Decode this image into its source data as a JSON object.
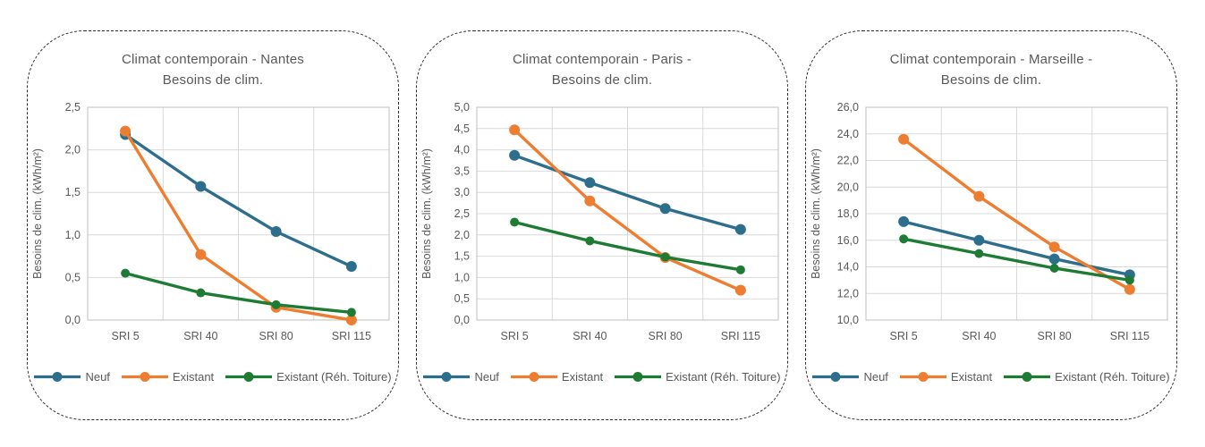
{
  "colors": {
    "grid": "#d9d9d9",
    "plot_border": "#bfbfbf",
    "axis_text": "#595959",
    "title_text": "#595959",
    "card_border": "#2b2b2b"
  },
  "chart_data": [
    {
      "type": "line",
      "title_line1": "Climat contemporain - Nantes",
      "title_line2": "Besoins de clim.",
      "ylabel": "Besoins de clim. (kWh/m²)",
      "categories": [
        "SRI 5",
        "SRI 40",
        "SRI 80",
        "SRI 115"
      ],
      "ylim": [
        0.0,
        2.5
      ],
      "ytick_step": 0.5,
      "decimals": 1,
      "grid": true,
      "legend_position": "bottom",
      "series": [
        {
          "name": "Neuf",
          "color": "#2d6e8d",
          "marker_r": 6,
          "values": [
            2.18,
            1.57,
            1.04,
            0.63
          ]
        },
        {
          "name": "Existant",
          "color": "#ed7d31",
          "marker_r": 6,
          "values": [
            2.22,
            0.77,
            0.15,
            0.0
          ]
        },
        {
          "name": "Existant (Réh. Toiture)",
          "color": "#1e7b34",
          "marker_r": 5,
          "values": [
            0.55,
            0.32,
            0.18,
            0.09
          ]
        }
      ]
    },
    {
      "type": "line",
      "title_line1": "Climat contemporain - Paris -",
      "title_line2": "Besoins de clim.",
      "ylabel": "Besoins de clim. (kWh/m²)",
      "categories": [
        "SRI 5",
        "SRI 40",
        "SRI 80",
        "SRI 115"
      ],
      "ylim": [
        0.0,
        5.0
      ],
      "ytick_step": 0.5,
      "decimals": 1,
      "grid": true,
      "legend_position": "bottom",
      "series": [
        {
          "name": "Neuf",
          "color": "#2d6e8d",
          "marker_r": 6,
          "values": [
            3.87,
            3.23,
            2.62,
            2.13
          ]
        },
        {
          "name": "Existant",
          "color": "#ed7d31",
          "marker_r": 6,
          "values": [
            4.47,
            2.8,
            1.47,
            0.7
          ]
        },
        {
          "name": "Existant (Réh. Toiture)",
          "color": "#1e7b34",
          "marker_r": 5,
          "values": [
            2.3,
            1.86,
            1.48,
            1.18
          ]
        }
      ]
    },
    {
      "type": "line",
      "title_line1": "Climat contemporain - Marseille -",
      "title_line2": "Besoins de clim.",
      "ylabel": "Besoins de clim. (kWh/m²)",
      "categories": [
        "SRI 5",
        "SRI 40",
        "SRI 80",
        "SRI 115"
      ],
      "ylim": [
        10.0,
        26.0
      ],
      "ytick_step": 2.0,
      "decimals": 1,
      "grid": true,
      "legend_position": "bottom",
      "series": [
        {
          "name": "Neuf",
          "color": "#2d6e8d",
          "marker_r": 6,
          "values": [
            17.4,
            16.0,
            14.6,
            13.4
          ]
        },
        {
          "name": "Existant",
          "color": "#ed7d31",
          "marker_r": 6,
          "values": [
            23.6,
            19.3,
            15.5,
            12.3
          ]
        },
        {
          "name": "Existant (Réh. Toiture)",
          "color": "#1e7b34",
          "marker_r": 5,
          "values": [
            16.1,
            15.0,
            13.9,
            13.0
          ]
        }
      ]
    }
  ]
}
